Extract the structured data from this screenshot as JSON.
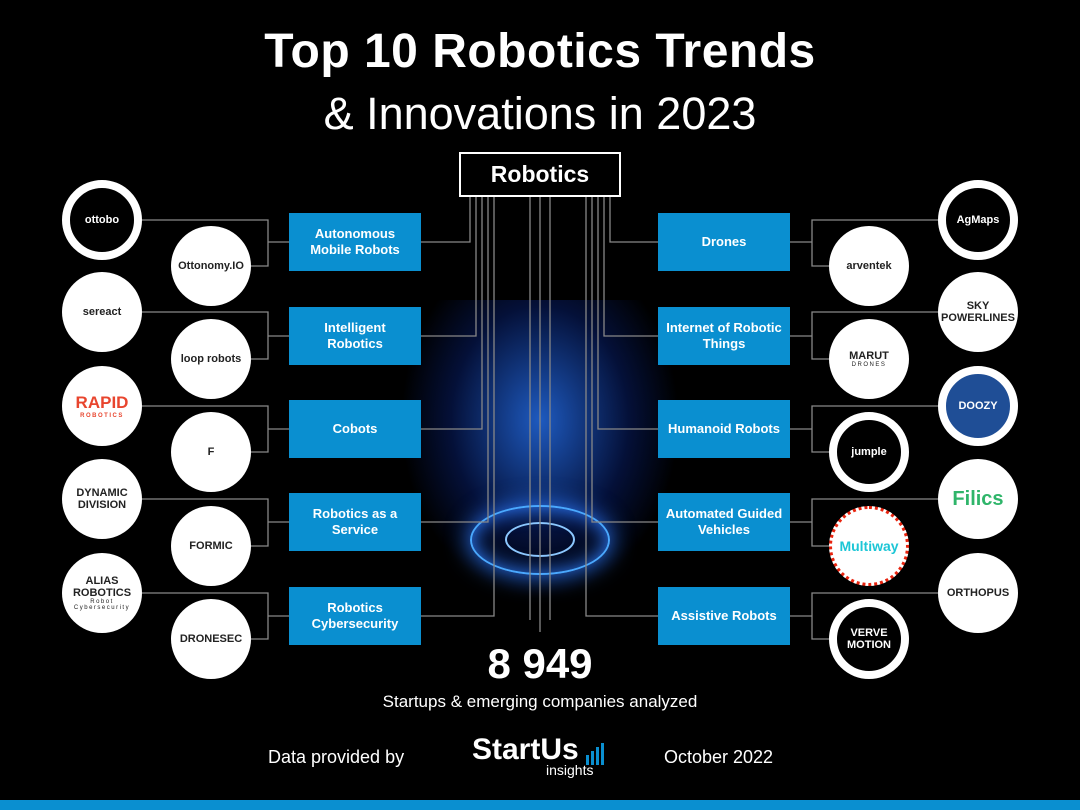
{
  "title": {
    "line1": "Top 10 Robotics Trends",
    "line2": "& Innovations in 2023"
  },
  "root": "Robotics",
  "trends_left": [
    "Autonomous Mobile Robots",
    "Intelligent Robotics",
    "Cobots",
    "Robotics as a Service",
    "Robotics Cybersecurity"
  ],
  "trends_right": [
    "Drones",
    "Internet of Robotic Things",
    "Humanoid Robots",
    "Automated Guided Vehicles",
    "Assistive Robots"
  ],
  "left_outer": [
    {
      "name": "ottobo"
    },
    {
      "name": "sereact"
    },
    {
      "name": "RAPID",
      "sub": "ROBOTICS"
    },
    {
      "name": "DYNAMIC DIVISION"
    },
    {
      "name": "ALIAS ROBOTICS",
      "sub": "Robot Cybersecurity"
    }
  ],
  "left_inner": [
    {
      "name": "Ottonomy.IO"
    },
    {
      "name": "loop robots"
    },
    {
      "name": "F"
    },
    {
      "name": "FORMIC"
    },
    {
      "name": "DRONESEC"
    }
  ],
  "right_outer": [
    {
      "name": "AgMaps"
    },
    {
      "name": "SKY POWERLINES"
    },
    {
      "name": "DOOZY"
    },
    {
      "name": "Filics"
    },
    {
      "name": "ORTHOPUS"
    }
  ],
  "right_inner": [
    {
      "name": "arventek"
    },
    {
      "name": "MARUT",
      "sub": "DRONES"
    },
    {
      "name": "jumple"
    },
    {
      "name": "Multiway"
    },
    {
      "name": "VERVE MOTION"
    }
  ],
  "stats": {
    "count": "8 949",
    "label": "Startups & emerging companies analyzed"
  },
  "footer": {
    "provided": "Data provided by",
    "brand": "StartUs",
    "brand_sub": "insights",
    "date": "October 2022"
  },
  "colors": {
    "accent": "#0a8fd0",
    "highlight": "#e8230e"
  }
}
